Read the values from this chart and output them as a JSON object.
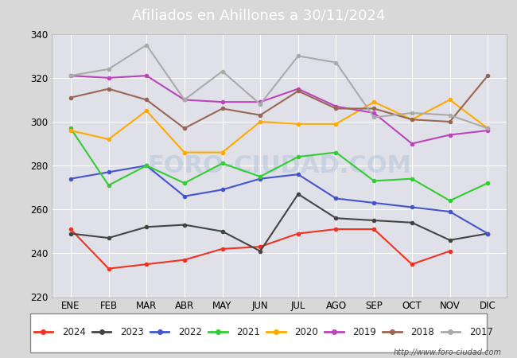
{
  "title": "Afiliados en Ahillones a 30/11/2024",
  "months": [
    "ENE",
    "FEB",
    "MAR",
    "ABR",
    "MAY",
    "JUN",
    "JUL",
    "AGO",
    "SEP",
    "OCT",
    "NOV",
    "DIC"
  ],
  "ylim": [
    220,
    340
  ],
  "yticks": [
    220,
    240,
    260,
    280,
    300,
    320,
    340
  ],
  "series": {
    "2024": {
      "color": "#ee3322",
      "values": [
        251,
        233,
        235,
        237,
        242,
        243,
        249,
        251,
        251,
        235,
        241,
        null
      ]
    },
    "2023": {
      "color": "#444444",
      "values": [
        249,
        247,
        252,
        253,
        250,
        241,
        267,
        256,
        255,
        254,
        246,
        249
      ]
    },
    "2022": {
      "color": "#4455cc",
      "values": [
        274,
        277,
        280,
        266,
        269,
        274,
        276,
        265,
        263,
        261,
        259,
        249
      ]
    },
    "2021": {
      "color": "#33cc33",
      "values": [
        297,
        271,
        280,
        272,
        281,
        275,
        284,
        286,
        273,
        274,
        264,
        272
      ]
    },
    "2020": {
      "color": "#ffaa00",
      "values": [
        296,
        292,
        305,
        286,
        286,
        300,
        299,
        299,
        309,
        301,
        310,
        297
      ]
    },
    "2019": {
      "color": "#bb44bb",
      "values": [
        321,
        320,
        321,
        310,
        309,
        309,
        315,
        307,
        304,
        290,
        294,
        296
      ]
    },
    "2018": {
      "color": "#996655",
      "values": [
        311,
        315,
        310,
        297,
        306,
        303,
        314,
        306,
        306,
        301,
        300,
        321
      ]
    },
    "2017": {
      "color": "#aaaaaa",
      "values": [
        321,
        324,
        335,
        310,
        323,
        308,
        330,
        327,
        302,
        304,
        303,
        297
      ]
    }
  },
  "legend_order": [
    "2024",
    "2023",
    "2022",
    "2021",
    "2020",
    "2019",
    "2018",
    "2017"
  ],
  "watermark": "FORO-CIUDAD.COM",
  "url": "http://www.foro-ciudad.com",
  "outer_background": "#d8d8d8",
  "plot_background": "#ffffff",
  "inner_grid_background": "#e0e0e8",
  "title_background": "#5588cc",
  "title_color": "#ffffff",
  "grid_color": "#ffffff",
  "border_color": "#aaaaaa"
}
